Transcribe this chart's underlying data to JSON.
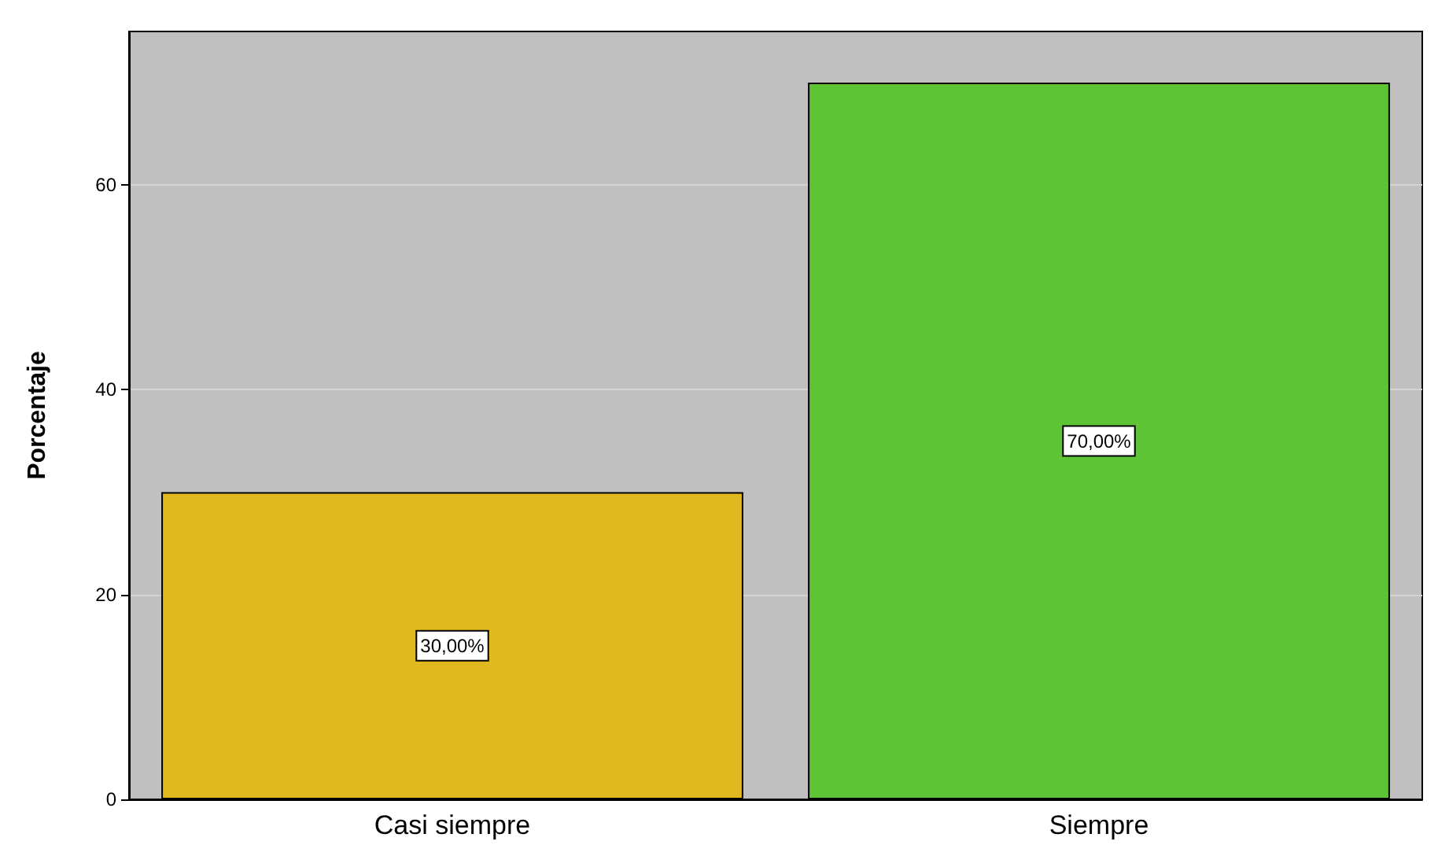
{
  "chart_data": {
    "type": "bar",
    "ylabel": "Porcentaje",
    "categories": [
      "Casi siempre",
      "Siempre"
    ],
    "values": [
      30,
      70
    ],
    "colors": [
      "#e0b820",
      "#5ec435"
    ],
    "value_labels": [
      "30,00%",
      "70,00%"
    ],
    "ylim": [
      0,
      75
    ],
    "yticks": [
      0,
      20,
      40,
      60
    ],
    "grid": "y"
  }
}
